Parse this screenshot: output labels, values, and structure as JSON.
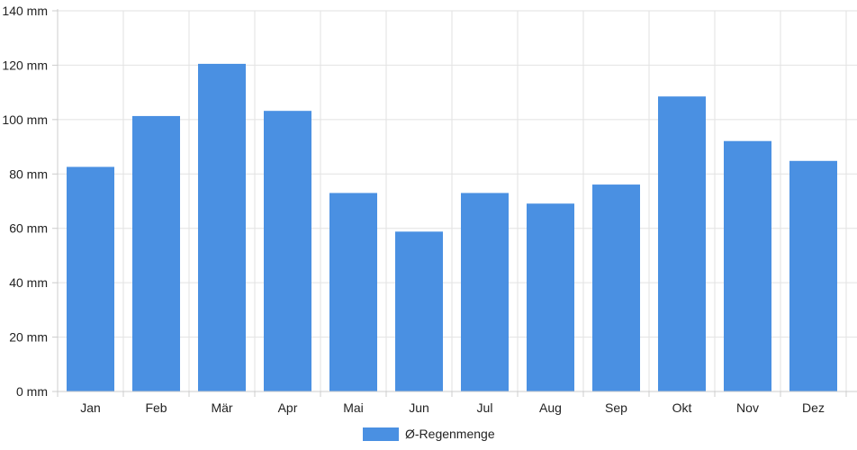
{
  "chart_data": {
    "type": "bar",
    "categories": [
      "Jan",
      "Feb",
      "Mär",
      "Apr",
      "Mai",
      "Jun",
      "Jul",
      "Aug",
      "Sep",
      "Okt",
      "Nov",
      "Dez"
    ],
    "series": [
      {
        "name": "Ø-Regenmenge",
        "color": "#4a90e2",
        "values": [
          82.6,
          101.3,
          120.5,
          103.2,
          73.0,
          58.8,
          73.0,
          69.1,
          76.1,
          108.5,
          92.1,
          84.8
        ]
      }
    ],
    "y_ticks": [
      "0 mm",
      "20 mm",
      "40 mm",
      "60 mm",
      "80 mm",
      "100 mm",
      "120 mm",
      "140 mm"
    ],
    "ylim": [
      0,
      140
    ],
    "y_step": 20,
    "unit": "mm",
    "grid": true,
    "legend_position": "bottom-center",
    "title": "",
    "xlabel": "",
    "ylabel": ""
  }
}
